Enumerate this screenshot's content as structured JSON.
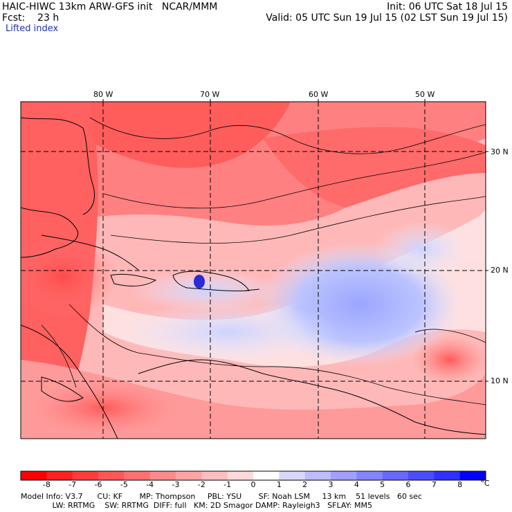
{
  "header": {
    "line1_left": "HAIC-HIWC 13km ARW-GFS init   NCAR/MMM",
    "line1_right": "Init: 06 UTC Sat 18 Jul 15",
    "line2_left": "Fcst:    23 h",
    "line2_right": "Valid: 05 UTC Sun 19 Jul 15 (02 LST Sun 19 Jul 15)",
    "field_name": "Lifted index"
  },
  "map": {
    "lon_labels": [
      "80 W",
      "70 W",
      "60 W",
      "50 W"
    ],
    "lat_labels": [
      "30 N",
      "20 N",
      "10 N"
    ],
    "colors": {
      "land_outline": "#000000",
      "grid": "#000000"
    }
  },
  "colorbar": {
    "unit": "°C",
    "labels": [
      "-8",
      "-7",
      "-6",
      "-5",
      "-4",
      "-3",
      "-2",
      "-1",
      "0",
      "1",
      "2",
      "3",
      "4",
      "5",
      "6",
      "7",
      "8"
    ],
    "colors": [
      "#ff0000",
      "#ff2020",
      "#ff3c3c",
      "#ff5656",
      "#ff7070",
      "#ff8a8a",
      "#ffa4a4",
      "#ffbebe",
      "#ffd8d8",
      "#ffffff",
      "#d8d8ff",
      "#bcbcff",
      "#a0a0ff",
      "#8484ff",
      "#6868ff",
      "#4c4cff",
      "#3030ff",
      "#0000ff"
    ]
  },
  "model_info": {
    "line1": "Model Info: V3.7      CU: KF       MP: Thompson     PBL: YSU       SF: Noah LSM     13 km    51 levels   60 sec",
    "line2": "             LW: RRTMG    SW: RRTMG  DIFF: full   KM: 2D Smagor DAMP: Rayleigh3   SFLAY: MM5"
  }
}
